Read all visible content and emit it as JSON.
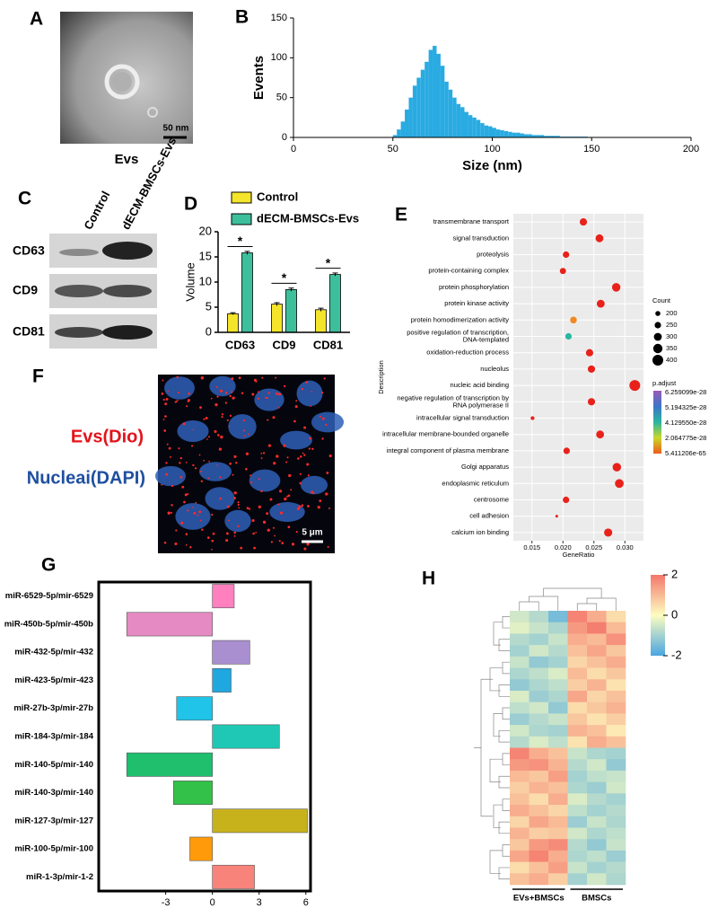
{
  "panels": {
    "A": {
      "letter": "A",
      "scale": "50 nm",
      "caption": "Evs"
    },
    "C": {
      "letter": "C",
      "lanes": [
        "Control",
        "dECM-BMSCs-Evs"
      ],
      "rows": [
        "CD63",
        "CD9",
        "CD81"
      ]
    },
    "F": {
      "letter": "F",
      "label_red": "Evs(Dio)",
      "label_blue": "Nucleai(DAPI)",
      "scale": "5 μm"
    }
  },
  "chart_data": [
    {
      "type": "histogram",
      "letter": "B",
      "xlabel": "Size (nm)",
      "ylabel": "Events",
      "color": "#29abe2",
      "bins": [
        50,
        52,
        54,
        56,
        58,
        60,
        62,
        64,
        66,
        68,
        70,
        72,
        74,
        76,
        78,
        80,
        82,
        84,
        86,
        88,
        90,
        92,
        94,
        96,
        98,
        100,
        102,
        104,
        106,
        108,
        110,
        112,
        114,
        116,
        118,
        120,
        122,
        124,
        126,
        128,
        130,
        132,
        134,
        136,
        138,
        140,
        142,
        144,
        146,
        148,
        150
      ],
      "counts": [
        3,
        10,
        20,
        35,
        50,
        65,
        75,
        85,
        95,
        110,
        115,
        105,
        90,
        70,
        60,
        50,
        42,
        38,
        32,
        28,
        25,
        22,
        18,
        15,
        14,
        12,
        10,
        9,
        8,
        7,
        6,
        6,
        5,
        4,
        4,
        3,
        3,
        3,
        2,
        2,
        2,
        2,
        1,
        1,
        1,
        1,
        1,
        1,
        1,
        0
      ],
      "xlim": [
        0,
        200
      ],
      "xticks": [
        0,
        50,
        100,
        150,
        200
      ],
      "ylim": [
        0,
        150
      ],
      "yticks": [
        0,
        50,
        100,
        150
      ]
    },
    {
      "type": "bar",
      "letter": "D",
      "ylabel": "Volume",
      "categories": [
        "CD63",
        "CD9",
        "CD81"
      ],
      "series": [
        {
          "name": "Control",
          "color": "#f5e52a",
          "values": [
            3.7,
            5.6,
            4.5
          ],
          "errors": [
            0.2,
            0.3,
            0.3
          ]
        },
        {
          "name": "dECM-BMSCs-Evs",
          "color": "#3dbf9c",
          "values": [
            15.8,
            8.5,
            11.5
          ],
          "errors": [
            0.3,
            0.3,
            0.3
          ]
        }
      ],
      "annotations": [
        "*",
        "*",
        "*"
      ],
      "ylim": [
        0,
        20
      ],
      "yticks": [
        0,
        5,
        10,
        15,
        20
      ]
    },
    {
      "type": "dot",
      "letter": "E",
      "xlabel": "GeneRatio",
      "ylabel": "Description",
      "categories": [
        "transmembrane transport",
        "signal transduction",
        "proteolysis",
        "protein-containing complex",
        "protein phosphorylation",
        "protein kinase activity",
        "protein homodimerization activity",
        [
          "positive regulation of transcription,",
          "DNA-templated"
        ],
        "oxidation-reduction process",
        "nucleolus",
        "nucleic acid binding",
        [
          "negative regulation of transcription by",
          "RNA polymerase II"
        ],
        "intracellular signal transduction",
        "intracellular membrane-bounded organelle",
        "integral component of plasma membrane",
        "Golgi apparatus",
        "endoplasmic reticulum",
        "centrosome",
        "cell adhesion",
        "calcium ion binding"
      ],
      "values": [
        0.0233,
        0.0259,
        0.0205,
        0.02,
        0.0286,
        0.0261,
        0.0217,
        0.0209,
        0.0243,
        0.0246,
        0.0316,
        0.0246,
        0.0151,
        0.026,
        0.0206,
        0.0287,
        0.0291,
        0.0205,
        0.019,
        0.0273
      ],
      "sizes": [
        280,
        300,
        250,
        240,
        320,
        300,
        260,
        250,
        280,
        280,
        400,
        280,
        160,
        300,
        250,
        320,
        330,
        250,
        120,
        310
      ],
      "colors": [
        "#e8221a",
        "#e8221a",
        "#e8221a",
        "#e8221a",
        "#e8221a",
        "#e8221a",
        "#f08a24",
        "#26b8a0",
        "#e8221a",
        "#e8221a",
        "#e8221a",
        "#e8221a",
        "#e8221a",
        "#e8221a",
        "#e8221a",
        "#e8221a",
        "#e8221a",
        "#e8221a",
        "#e8221a",
        "#e8221a"
      ],
      "xlim": [
        0.012,
        0.033
      ],
      "xticks": [
        0.015,
        {
          "value": 0.02,
          "label": "0.020"
        },
        {
          "value": 0.025,
          "label": "0.025"
        },
        {
          "value": 0.03,
          "label": "0.030"
        }
      ],
      "size_legend": {
        "title": "Count",
        "values": [
          200,
          250,
          300,
          350,
          400
        ]
      },
      "color_legend": {
        "title": "p.adjust",
        "labels": [
          "6.259099e-28",
          "5.194325e-28",
          "4.129550e-28",
          "2.064775e-28",
          "5.411206e-65"
        ],
        "colors": [
          "#9b59b6",
          "#3b75c9",
          "#2bb5a0",
          "#c8d82b",
          "#f05a1a"
        ]
      }
    },
    {
      "type": "hbar",
      "letter": "G",
      "categories": [
        "miR-6529-5p/mir-6529",
        "miR-450b-5p/mir-450b",
        "miR-432-5p/mir-432",
        "miR-423-5p/mir-423",
        "miR-27b-3p/mir-27b",
        "miR-184-3p/mir-184",
        "miR-140-5p/mir-140",
        "miR-140-3p/mir-140",
        "miR-127-3p/mir-127",
        "miR-100-5p/mir-100",
        "miR-1-3p/mir-1-2"
      ],
      "values": [
        1.4,
        -5.5,
        2.4,
        1.2,
        -2.3,
        4.3,
        -5.5,
        -2.5,
        6.1,
        -1.45,
        2.7
      ],
      "colors": [
        "#ff7fbf",
        "#e58ac2",
        "#a98fd0",
        "#1fa7e0",
        "#1fc4e8",
        "#1fc8b4",
        "#1fbf6e",
        "#33c14a",
        "#c7b21c",
        "#ff9a0a",
        "#f8837a"
      ],
      "xlim": [
        -7.3,
        6.3
      ],
      "xticks": [
        -3,
        0,
        3,
        6
      ]
    },
    {
      "type": "heatmap",
      "letter": "H",
      "groups": [
        "EVs+BMSCs",
        "BMSCs"
      ],
      "zlim": [
        -2,
        2
      ],
      "zticks": [
        2,
        0,
        -2
      ],
      "colors": [
        "#4aa6e0",
        "#fdfdc0",
        "#f4776c"
      ],
      "values": [
        [
          -0.5,
          -0.8,
          -1.5,
          1.8,
          1.2,
          0.5
        ],
        [
          -0.3,
          -0.6,
          -0.9,
          1.5,
          1.9,
          1.0
        ],
        [
          -0.8,
          -1.0,
          -0.6,
          1.2,
          1.0,
          1.6
        ],
        [
          -1.0,
          -0.5,
          -0.8,
          0.9,
          1.3,
          0.8
        ],
        [
          -0.6,
          -1.2,
          -1.0,
          0.6,
          0.9,
          1.2
        ],
        [
          -0.9,
          -0.7,
          -0.4,
          1.0,
          0.5,
          0.8
        ],
        [
          -1.2,
          -0.9,
          -0.7,
          0.7,
          1.1,
          0.4
        ],
        [
          -0.4,
          -1.1,
          -0.9,
          1.3,
          0.6,
          0.9
        ],
        [
          -0.7,
          -0.5,
          -1.2,
          0.5,
          0.8,
          1.1
        ],
        [
          -1.1,
          -0.8,
          -0.6,
          0.8,
          0.4,
          0.7
        ],
        [
          -0.5,
          -0.9,
          -1.0,
          1.1,
          0.9,
          0.3
        ],
        [
          -0.8,
          -0.4,
          -0.7,
          0.4,
          1.2,
          0.9
        ],
        [
          1.8,
          1.2,
          0.9,
          -0.6,
          -0.9,
          -1.0
        ],
        [
          1.5,
          1.6,
          1.1,
          -0.8,
          -0.5,
          -1.2
        ],
        [
          1.0,
          0.8,
          1.4,
          -1.0,
          -0.7,
          -0.6
        ],
        [
          0.7,
          1.1,
          0.9,
          -0.9,
          -1.1,
          -0.5
        ],
        [
          0.9,
          0.5,
          1.2,
          -0.4,
          -0.8,
          -1.0
        ],
        [
          1.2,
          0.9,
          0.6,
          -0.7,
          -1.0,
          -0.8
        ],
        [
          0.6,
          1.3,
          1.0,
          -1.1,
          -0.6,
          -0.9
        ],
        [
          1.1,
          0.7,
          0.8,
          -0.5,
          -0.9,
          -0.7
        ],
        [
          0.8,
          1.5,
          1.7,
          -0.8,
          -1.2,
          -0.6
        ],
        [
          1.3,
          1.8,
          1.2,
          -0.9,
          -0.7,
          -1.1
        ],
        [
          0.5,
          0.9,
          1.4,
          -0.6,
          -1.0,
          -0.8
        ],
        [
          0.9,
          1.2,
          0.7,
          -1.0,
          -0.5,
          -0.9
        ]
      ]
    }
  ]
}
